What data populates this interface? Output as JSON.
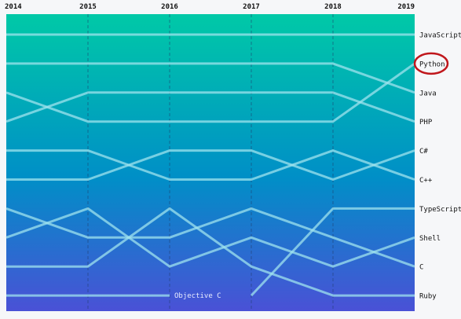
{
  "chart_data": {
    "type": "line",
    "subtype": "bump",
    "x": [
      "2014",
      "2015",
      "2016",
      "2017",
      "2018",
      "2019"
    ],
    "y_reversed": true,
    "ranks_note_hidden": true,
    "series": [
      {
        "name": "JavaScript",
        "values": [
          1,
          1,
          1,
          1,
          1,
          1
        ]
      },
      {
        "name": "Python",
        "values": [
          2,
          2,
          2,
          2,
          2,
          3
        ]
      },
      {
        "name": "Java",
        "values": [
          3,
          4,
          4,
          4,
          4,
          2
        ]
      },
      {
        "name": "PHP",
        "values": [
          4,
          3,
          3,
          3,
          3,
          4
        ]
      },
      {
        "name": "C#",
        "values": [
          5,
          5,
          6,
          6,
          5,
          6
        ]
      },
      {
        "name": "C++",
        "values": [
          6,
          6,
          5,
          5,
          6,
          5
        ]
      },
      {
        "name": "TypeScript",
        "values": [
          null,
          null,
          null,
          10,
          7,
          7
        ]
      },
      {
        "name": "Shell",
        "values": [
          7,
          8,
          8,
          7,
          8,
          9
        ]
      },
      {
        "name": "C",
        "values": [
          8,
          7,
          9,
          8,
          9,
          8
        ]
      },
      {
        "name": "Ruby",
        "values": [
          9,
          9,
          7,
          9,
          10,
          10
        ]
      },
      {
        "name": "Objective C",
        "values": [
          10,
          10,
          10,
          null,
          null,
          null
        ]
      }
    ],
    "right_labels": [
      "JavaScript",
      "Python",
      "Java",
      "PHP",
      "C#",
      "C++",
      "TypeScript",
      "Shell",
      "C",
      "Ruby"
    ],
    "inline_label": {
      "text": "Objective C",
      "series": "Objective C"
    },
    "highlight": {
      "label": "Python",
      "color": "#c0171c"
    },
    "grid": {
      "vertical_dashed": true
    },
    "colors": {
      "gradient_top": "#00c9a7",
      "gradient_mid": "#008fc7",
      "gradient_bottom": "#4a51d6",
      "line": "#9fe3ee",
      "label_text": "#111111",
      "inline_text": "#e8ecff",
      "highlight_ring": "#c0171c"
    }
  }
}
